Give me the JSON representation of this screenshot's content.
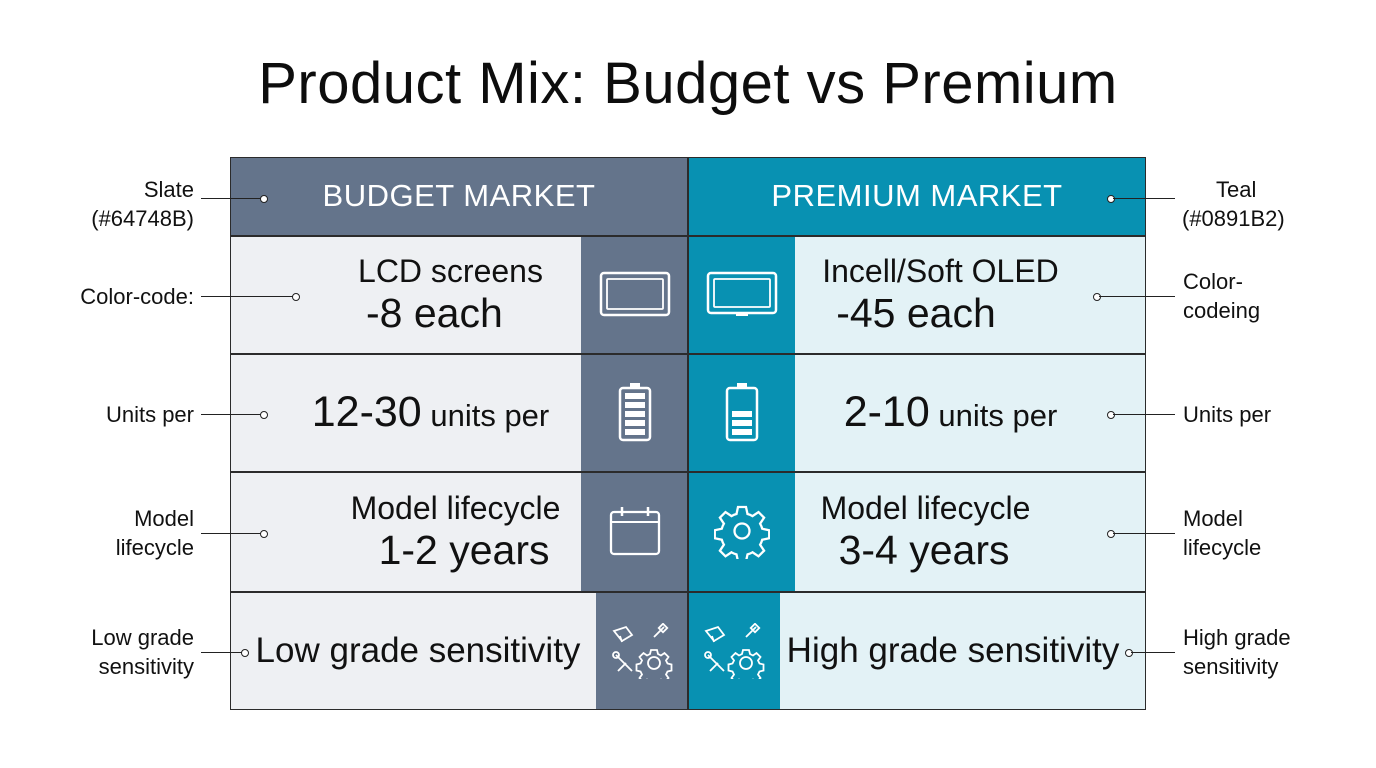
{
  "title": "Product Mix: Budget vs Premium",
  "headers": {
    "budget": "BUDGET MARKET",
    "premium": "PREMIUM MARKET"
  },
  "colors": {
    "budget": "#64748B",
    "premium": "#0891B2"
  },
  "rows": [
    {
      "budget": {
        "line1": "LCD screens",
        "line2": "-8 each"
      },
      "premium": {
        "line1": "Incell/Soft OLED",
        "line2": "-45 each"
      },
      "budget_icon": "monitor-icon",
      "premium_icon": "monitor-icon"
    },
    {
      "budget": {
        "big": "12-30",
        "small": "units per"
      },
      "premium": {
        "big": "2-10",
        "small": "units per"
      },
      "budget_icon": "battery-full-icon",
      "premium_icon": "battery-half-icon"
    },
    {
      "budget": {
        "line1": "Model lifecycle",
        "line2": "1-2 years"
      },
      "premium": {
        "line1": "Model lifecycle",
        "line2": "3-4 years"
      },
      "budget_icon": "calendar-icon",
      "premium_icon": "gear-icon"
    },
    {
      "budget": {
        "text": "Low grade sensitivity"
      },
      "premium": {
        "text": "High grade sensitivity"
      },
      "budget_icon": "tools-icon",
      "premium_icon": "tools-icon"
    }
  ],
  "annotations": {
    "left": [
      {
        "lines": [
          "Slate",
          "(#64748B)"
        ]
      },
      {
        "lines": [
          "Color-code:"
        ]
      },
      {
        "lines": [
          "Units per"
        ]
      },
      {
        "lines": [
          "Model",
          "lifecycle"
        ]
      },
      {
        "lines": [
          "Low grade",
          "sensitivity"
        ]
      }
    ],
    "right": [
      {
        "lines": [
          "Teal",
          "(#0891B2)"
        ]
      },
      {
        "lines": [
          "Color-",
          "codeing"
        ]
      },
      {
        "lines": [
          "Units per"
        ]
      },
      {
        "lines": [
          "Model",
          "lifecycle"
        ]
      },
      {
        "lines": [
          "High grade",
          "sensitivity"
        ]
      }
    ]
  }
}
